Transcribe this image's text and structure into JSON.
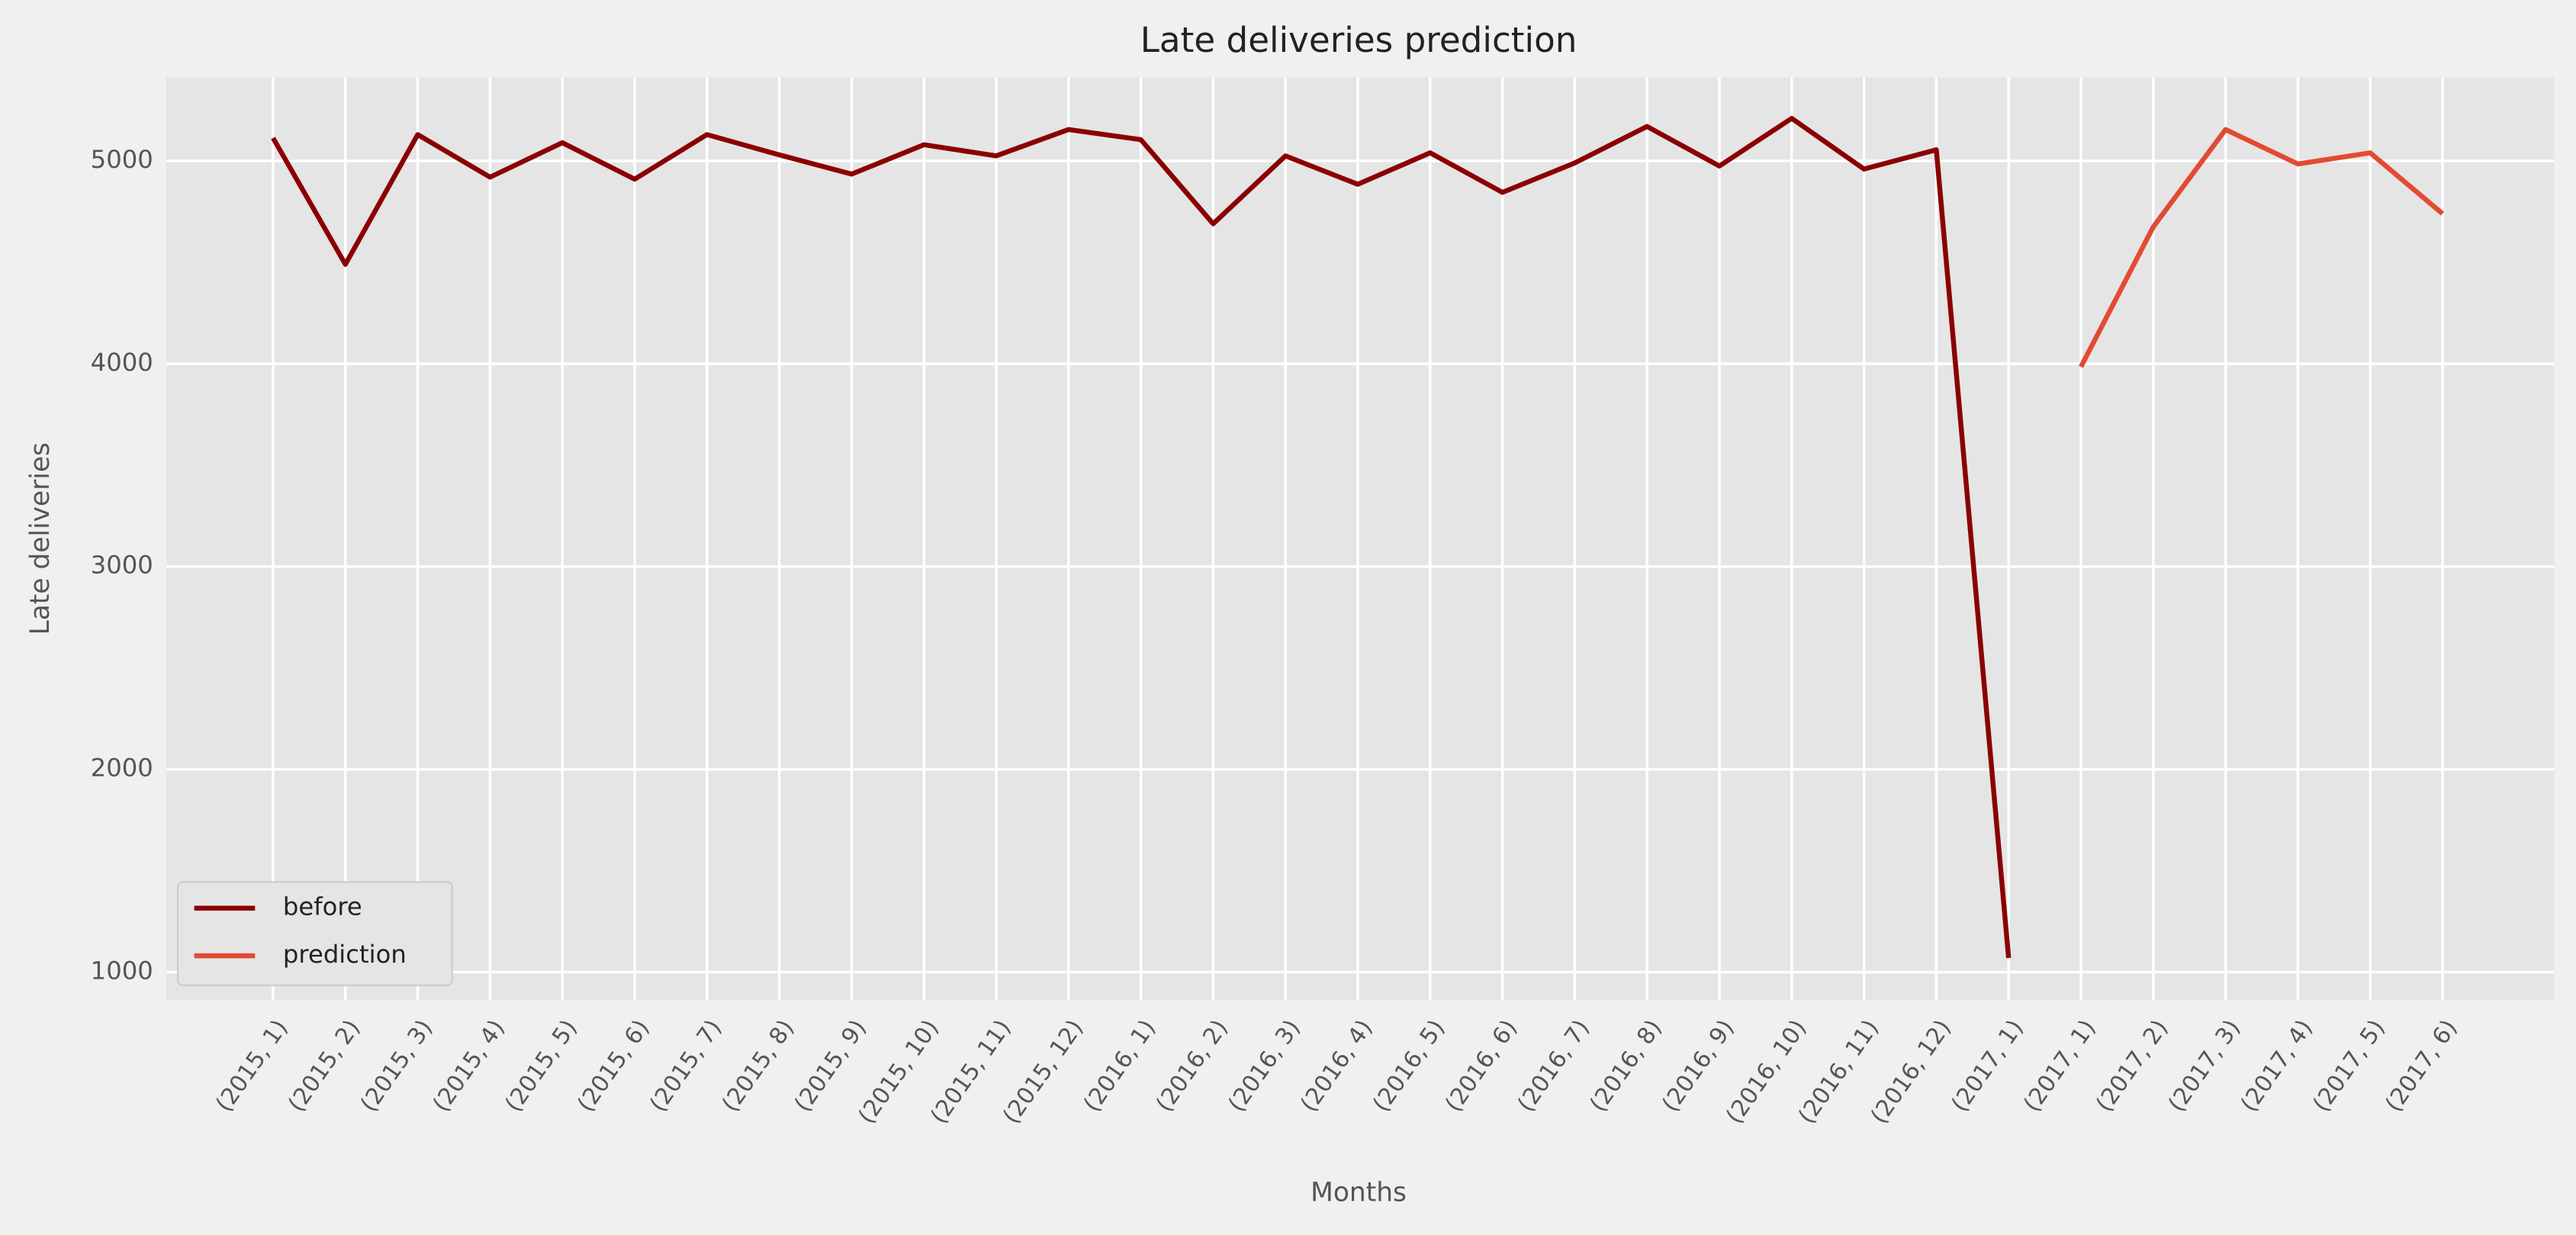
{
  "chart_data": {
    "type": "line",
    "title": "Late deliveries prediction",
    "x_label": "Months",
    "y_label": "Late deliveries",
    "categories": [
      "(2015, 1)",
      "(2015, 2)",
      "(2015, 3)",
      "(2015, 4)",
      "(2015, 5)",
      "(2015, 6)",
      "(2015, 7)",
      "(2015, 8)",
      "(2015, 9)",
      "(2015, 10)",
      "(2015, 11)",
      "(2015, 12)",
      "(2016, 1)",
      "(2016, 2)",
      "(2016, 3)",
      "(2016, 4)",
      "(2016, 5)",
      "(2016, 6)",
      "(2016, 7)",
      "(2016, 8)",
      "(2016, 9)",
      "(2016, 10)",
      "(2016, 11)",
      "(2016, 12)",
      "(2017, 1)",
      "(2017, 1)",
      "(2017, 2)",
      "(2017, 3)",
      "(2017, 4)",
      "(2017, 5)",
      "(2017, 6)"
    ],
    "series": [
      {
        "name": "before",
        "color": "#8b0000",
        "values": [
          5113,
          4490,
          5130,
          4920,
          5090,
          4910,
          5130,
          5030,
          4935,
          5080,
          5025,
          5155,
          5105,
          4690,
          5025,
          4885,
          5040,
          4845,
          4990,
          5170,
          4975,
          5210,
          4960,
          5055,
          1070,
          null,
          null,
          null,
          null,
          null,
          null
        ]
      },
      {
        "name": "prediction",
        "color": "#e24a33",
        "values": [
          null,
          null,
          null,
          null,
          null,
          null,
          null,
          null,
          null,
          null,
          null,
          null,
          null,
          null,
          null,
          null,
          null,
          null,
          null,
          null,
          null,
          null,
          null,
          null,
          null,
          3985,
          4675,
          5155,
          4985,
          5040,
          4740
        ]
      }
    ],
    "ylim": [
      862,
      5413
    ],
    "yticks": [
      1000,
      2000,
      3000,
      4000,
      5000
    ],
    "grid": true,
    "legend": "lower left"
  }
}
